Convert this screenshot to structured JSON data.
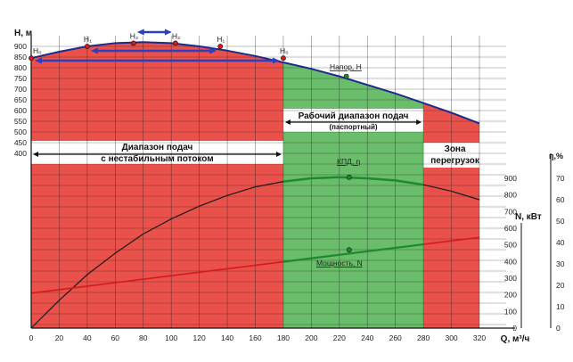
{
  "chart_data": {
    "type": "line",
    "x": [
      0,
      20,
      40,
      60,
      80,
      100,
      120,
      140,
      160,
      180,
      200,
      220,
      240,
      260,
      280,
      300,
      320
    ],
    "x_label": "Q, м³/ч",
    "x_ticks": [
      "0",
      "20",
      "40",
      "60",
      "80",
      "100",
      "120",
      "140",
      "160",
      "180",
      "200",
      "220",
      "240",
      "260",
      "280",
      "300",
      "320"
    ],
    "axes": {
      "head": {
        "label": "H, м",
        "ticks": [
          "400",
          "450",
          "500",
          "550",
          "600",
          "650",
          "700",
          "750",
          "800",
          "850",
          "900"
        ],
        "range": [
          400,
          900
        ]
      },
      "efficiency": {
        "label": "η,%",
        "ticks": [
          "0",
          "10",
          "20",
          "30",
          "40",
          "50",
          "60",
          "70"
        ],
        "range": [
          0,
          70
        ]
      },
      "power": {
        "label": "N, кВт",
        "ticks": [
          "0",
          "100",
          "200",
          "300",
          "400",
          "500",
          "600",
          "700",
          "800",
          "900"
        ],
        "range": [
          0,
          900
        ]
      }
    },
    "series": [
      {
        "name": "Напор, H",
        "color": "#1c2a8c",
        "x": [
          0,
          20,
          40,
          60,
          80,
          100,
          120,
          140,
          160,
          180,
          200,
          220,
          240,
          260,
          280,
          300,
          320
        ],
        "values": [
          845,
          875,
          900,
          915,
          920,
          915,
          900,
          880,
          855,
          825,
          795,
          760,
          720,
          680,
          635,
          590,
          540
        ]
      },
      {
        "name": "КПД, η",
        "color": "#1a1a1a",
        "highlight_color": "#1e8a2e",
        "x": [
          0,
          20,
          40,
          60,
          80,
          100,
          120,
          140,
          160,
          180,
          200,
          220,
          240,
          260,
          280,
          300,
          320
        ],
        "values": [
          0,
          13,
          25,
          35,
          44,
          51,
          57,
          62,
          66,
          68.5,
          70,
          70.5,
          70,
          69,
          67,
          64,
          60
        ]
      },
      {
        "name": "Мощность, N",
        "color": "#d41a1a",
        "highlight_color": "#1e8a2e",
        "x": [
          0,
          320
        ],
        "values": [
          210,
          545
        ]
      }
    ],
    "zones": [
      {
        "label": "Диапазон подач\nс нестабильным потоком",
        "from": 0,
        "to": 180,
        "color": "#e8443c"
      },
      {
        "label": "Рабочий диапазон подач",
        "sublabel": "(паспортный)",
        "from": 180,
        "to": 280,
        "color": "#5fb85f"
      },
      {
        "label": "Зона\nперегрузок",
        "from": 280,
        "to": 320,
        "color": "#e8443c"
      }
    ],
    "annotations": [
      {
        "text": "H₀",
        "x": 0,
        "y": 845
      },
      {
        "text": "H₁",
        "x": 40,
        "y": 900
      },
      {
        "text": "H₂",
        "x": 73,
        "y": 915
      },
      {
        "text": "H₂",
        "x": 103,
        "y": 915
      },
      {
        "text": "H₁",
        "x": 135,
        "y": 900
      },
      {
        "text": "H₀",
        "x": 180,
        "y": 845
      }
    ],
    "markers": [
      {
        "series": "Напор, H",
        "x": 225,
        "y": 760
      },
      {
        "series": "КПД, η",
        "x": 227,
        "y": 70.5
      },
      {
        "series": "Мощность, N",
        "x": 227,
        "y": 470
      }
    ],
    "grid": true
  }
}
